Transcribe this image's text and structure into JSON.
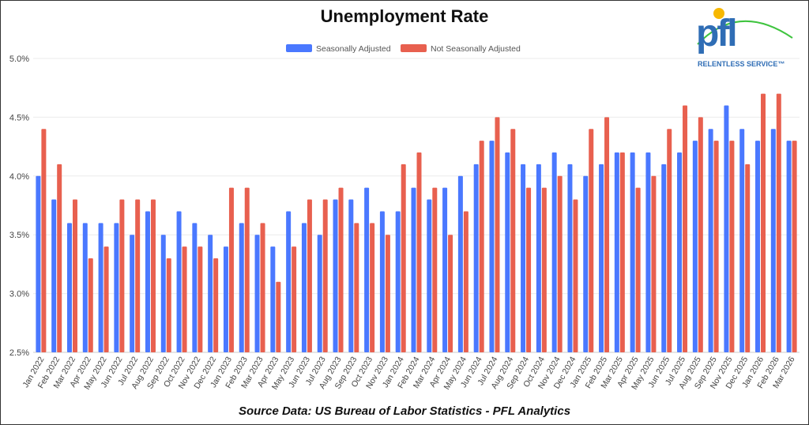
{
  "chart_data": {
    "type": "bar",
    "title": "Unemployment Rate",
    "xlabel": "",
    "ylabel": "",
    "ylim": [
      2.5,
      5.0
    ],
    "yticks": [
      "2.5%",
      "3.0%",
      "3.5%",
      "4.0%",
      "4.5%",
      "5.0%"
    ],
    "ytick_values": [
      2.5,
      3.0,
      3.5,
      4.0,
      4.5,
      5.0
    ],
    "grid": true,
    "legend_position": "top-center",
    "categories": [
      "Jan 2022",
      "Feb 2022",
      "Mar 2022",
      "Apr 2022",
      "May 2022",
      "Jun 2022",
      "Jul 2022",
      "Aug 2022",
      "Sep 2022",
      "Oct 2022",
      "Nov 2022",
      "Dec 2022",
      "Jan 2023",
      "Feb 2023",
      "Mar 2023",
      "Apr 2023",
      "May 2023",
      "Jun 2023",
      "Jul 2023",
      "Aug 2023",
      "Sep 2023",
      "Oct 2023",
      "Nov 2023",
      "Jan 2024",
      "Feb 2024",
      "Mar 2024",
      "Apr 2024",
      "May 2024",
      "Jun 2024",
      "Jul 2024",
      "Aug 2024",
      "Sep 2024",
      "Oct 2024",
      "Nov 2024",
      "Dec 2024",
      "Jan 2025",
      "Feb 2025",
      "Mar 2025",
      "Apr 2025",
      "May 2025",
      "Jun 2025",
      "Jul 2025",
      "Aug 2025",
      "Sep 2025",
      "Nov 2025",
      "Dec 2025",
      "Jan 2026",
      "Feb 2026",
      "Mar 2026"
    ],
    "series": [
      {
        "name": "Seasonally Adjusted",
        "color": "#4a78ff",
        "values": [
          4.0,
          3.8,
          3.6,
          3.6,
          3.6,
          3.6,
          3.5,
          3.7,
          3.5,
          3.7,
          3.6,
          3.5,
          3.4,
          3.6,
          3.5,
          3.4,
          3.7,
          3.6,
          3.5,
          3.8,
          3.8,
          3.9,
          3.7,
          3.7,
          3.9,
          3.8,
          3.9,
          4.0,
          4.1,
          4.3,
          4.2,
          4.1,
          4.1,
          4.2,
          4.1,
          4.0,
          4.1,
          4.2,
          4.2,
          4.2,
          4.1,
          4.2,
          4.3,
          4.4,
          4.6,
          4.4,
          4.3,
          4.4,
          4.3
        ]
      },
      {
        "name": "Not Seasonally Adjusted",
        "color": "#e8604f",
        "values": [
          4.4,
          4.1,
          3.8,
          3.3,
          3.4,
          3.8,
          3.8,
          3.8,
          3.3,
          3.4,
          3.4,
          3.3,
          3.9,
          3.9,
          3.6,
          3.1,
          3.4,
          3.8,
          3.8,
          3.9,
          3.6,
          3.6,
          3.5,
          4.1,
          4.2,
          3.9,
          3.5,
          3.7,
          4.3,
          4.5,
          4.4,
          3.9,
          3.9,
          4.0,
          3.8,
          4.4,
          4.5,
          4.2,
          3.9,
          4.0,
          4.4,
          4.6,
          4.5,
          4.3,
          4.3,
          4.1,
          4.7,
          4.7,
          4.3
        ]
      }
    ]
  },
  "source": "Source Data:  US Bureau of Labor Statistics - PFL Analytics",
  "logo": {
    "text": "pfl",
    "tagline": "RELENTLESS SERVICE™"
  }
}
